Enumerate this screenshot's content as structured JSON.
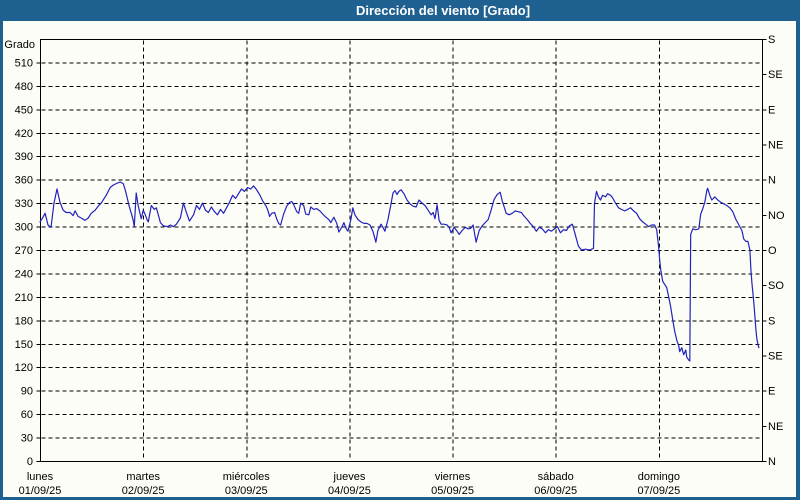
{
  "window": {
    "title": "Dirección del viento [Grado]"
  },
  "colors": {
    "titlebar_bg": "#1e6191",
    "frame_border": "#1e6191",
    "line": "#2222bd",
    "grid": "#000000",
    "background": "#fdfdf7"
  },
  "chart_data": {
    "type": "line",
    "title": "Dirección del viento [Grado]",
    "y_axis_label": "Grado",
    "ylim": [
      0,
      540
    ],
    "y_left_ticks": [
      0,
      30,
      60,
      90,
      120,
      150,
      180,
      210,
      240,
      270,
      300,
      330,
      360,
      390,
      420,
      450,
      480,
      510
    ],
    "y_right_ticks": [
      {
        "deg": 0,
        "label": "N"
      },
      {
        "deg": 45,
        "label": "NE"
      },
      {
        "deg": 90,
        "label": "E"
      },
      {
        "deg": 135,
        "label": "SE"
      },
      {
        "deg": 180,
        "label": "S"
      },
      {
        "deg": 225,
        "label": "SO"
      },
      {
        "deg": 270,
        "label": "O"
      },
      {
        "deg": 315,
        "label": "NO"
      },
      {
        "deg": 360,
        "label": "N"
      },
      {
        "deg": 405,
        "label": "NE"
      },
      {
        "deg": 450,
        "label": "E"
      },
      {
        "deg": 495,
        "label": "SE"
      },
      {
        "deg": 540,
        "label": "S"
      }
    ],
    "grid": "dashed",
    "x_days": [
      {
        "name": "lunes",
        "date": "01/09/25"
      },
      {
        "name": "martes",
        "date": "02/09/25"
      },
      {
        "name": "miércoles",
        "date": "03/09/25"
      },
      {
        "name": "jueves",
        "date": "04/09/25"
      },
      {
        "name": "viernes",
        "date": "05/09/25"
      },
      {
        "name": "sábado",
        "date": "06/09/25"
      },
      {
        "name": "domingo",
        "date": "07/09/25"
      }
    ],
    "series": [
      {
        "name": "Dirección del viento",
        "unit": "Grado",
        "color": "#2222bd",
        "points": [
          [
            0.0,
            306
          ],
          [
            0.029,
            312
          ],
          [
            0.049,
            317
          ],
          [
            0.078,
            302
          ],
          [
            0.107,
            299
          ],
          [
            0.136,
            330
          ],
          [
            0.165,
            348
          ],
          [
            0.194,
            331
          ],
          [
            0.224,
            321
          ],
          [
            0.253,
            318
          ],
          [
            0.292,
            318
          ],
          [
            0.321,
            314
          ],
          [
            0.34,
            320
          ],
          [
            0.369,
            313
          ],
          [
            0.399,
            311
          ],
          [
            0.437,
            308
          ],
          [
            0.467,
            311
          ],
          [
            0.496,
            317
          ],
          [
            0.535,
            321
          ],
          [
            0.564,
            326
          ],
          [
            0.593,
            330
          ],
          [
            0.642,
            340
          ],
          [
            0.681,
            350
          ],
          [
            0.71,
            353
          ],
          [
            0.739,
            355
          ],
          [
            0.778,
            357
          ],
          [
            0.807,
            355
          ],
          [
            0.826,
            347
          ],
          [
            0.846,
            336
          ],
          [
            0.865,
            326
          ],
          [
            0.885,
            317
          ],
          [
            0.904,
            308
          ],
          [
            0.914,
            300
          ],
          [
            0.933,
            343
          ],
          [
            0.953,
            326
          ],
          [
            0.972,
            315
          ],
          [
            0.982,
            310
          ],
          [
            1.001,
            321
          ],
          [
            1.021,
            315
          ],
          [
            1.04,
            308
          ],
          [
            1.05,
            306
          ],
          [
            1.079,
            327
          ],
          [
            1.108,
            322
          ],
          [
            1.128,
            324
          ],
          [
            1.147,
            315
          ],
          [
            1.167,
            305
          ],
          [
            1.196,
            301
          ],
          [
            1.235,
            300
          ],
          [
            1.264,
            302
          ],
          [
            1.293,
            300
          ],
          [
            1.322,
            303
          ],
          [
            1.361,
            311
          ],
          [
            1.39,
            330
          ],
          [
            1.419,
            318
          ],
          [
            1.449,
            307
          ],
          [
            1.488,
            315
          ],
          [
            1.517,
            327
          ],
          [
            1.546,
            322
          ],
          [
            1.575,
            330
          ],
          [
            1.604,
            321
          ],
          [
            1.633,
            318
          ],
          [
            1.662,
            325
          ],
          [
            1.692,
            319
          ],
          [
            1.721,
            315
          ],
          [
            1.75,
            322
          ],
          [
            1.779,
            317
          ],
          [
            1.808,
            324
          ],
          [
            1.837,
            331
          ],
          [
            1.867,
            340
          ],
          [
            1.896,
            336
          ],
          [
            1.925,
            342
          ],
          [
            1.954,
            348
          ],
          [
            1.983,
            345
          ],
          [
            2.013,
            350
          ],
          [
            2.042,
            348
          ],
          [
            2.071,
            352
          ],
          [
            2.1,
            347
          ],
          [
            2.129,
            341
          ],
          [
            2.158,
            333
          ],
          [
            2.188,
            327
          ],
          [
            2.207,
            322
          ],
          [
            2.226,
            313
          ],
          [
            2.246,
            317
          ],
          [
            2.275,
            318
          ],
          [
            2.294,
            310
          ],
          [
            2.314,
            304
          ],
          [
            2.333,
            302
          ],
          [
            2.362,
            316
          ],
          [
            2.392,
            326
          ],
          [
            2.421,
            331
          ],
          [
            2.44,
            332
          ],
          [
            2.46,
            328
          ],
          [
            2.489,
            319
          ],
          [
            2.508,
            317
          ],
          [
            2.528,
            330
          ],
          [
            2.557,
            327
          ],
          [
            2.576,
            316
          ],
          [
            2.606,
            315
          ],
          [
            2.625,
            325
          ],
          [
            2.654,
            322
          ],
          [
            2.683,
            323
          ],
          [
            2.713,
            320
          ],
          [
            2.742,
            316
          ],
          [
            2.771,
            312
          ],
          [
            2.8,
            309
          ],
          [
            2.819,
            305
          ],
          [
            2.849,
            312
          ],
          [
            2.878,
            304
          ],
          [
            2.897,
            293
          ],
          [
            2.926,
            299
          ],
          [
            2.946,
            305
          ],
          [
            2.965,
            298
          ],
          [
            2.985,
            294
          ],
          [
            3.014,
            309
          ],
          [
            3.033,
            324
          ],
          [
            3.053,
            315
          ],
          [
            3.082,
            309
          ],
          [
            3.111,
            306
          ],
          [
            3.14,
            304
          ],
          [
            3.169,
            304
          ],
          [
            3.199,
            302
          ],
          [
            3.228,
            294
          ],
          [
            3.257,
            280
          ],
          [
            3.276,
            295
          ],
          [
            3.306,
            303
          ],
          [
            3.325,
            299
          ],
          [
            3.344,
            294
          ],
          [
            3.374,
            309
          ],
          [
            3.403,
            329
          ],
          [
            3.422,
            343
          ],
          [
            3.442,
            346
          ],
          [
            3.461,
            341
          ],
          [
            3.48,
            345
          ],
          [
            3.5,
            347
          ],
          [
            3.529,
            342
          ],
          [
            3.558,
            334
          ],
          [
            3.587,
            329
          ],
          [
            3.617,
            326
          ],
          [
            3.646,
            325
          ],
          [
            3.675,
            334
          ],
          [
            3.704,
            330
          ],
          [
            3.733,
            327
          ],
          [
            3.762,
            321
          ],
          [
            3.792,
            315
          ],
          [
            3.811,
            318
          ],
          [
            3.83,
            310
          ],
          [
            3.85,
            328
          ],
          [
            3.869,
            308
          ],
          [
            3.889,
            303
          ],
          [
            3.918,
            303
          ],
          [
            3.947,
            302
          ],
          [
            3.966,
            299
          ],
          [
            3.986,
            292
          ],
          [
            4.015,
            299
          ],
          [
            4.044,
            294
          ],
          [
            4.063,
            290
          ],
          [
            4.093,
            295
          ],
          [
            4.122,
            299
          ],
          [
            4.151,
            297
          ],
          [
            4.18,
            298
          ],
          [
            4.199,
            302
          ],
          [
            4.228,
            280
          ],
          [
            4.258,
            295
          ],
          [
            4.287,
            301
          ],
          [
            4.316,
            305
          ],
          [
            4.345,
            309
          ],
          [
            4.375,
            322
          ],
          [
            4.404,
            335
          ],
          [
            4.433,
            341
          ],
          [
            4.462,
            344
          ],
          [
            4.481,
            333
          ],
          [
            4.501,
            325
          ],
          [
            4.52,
            317
          ],
          [
            4.549,
            315
          ],
          [
            4.578,
            317
          ],
          [
            4.608,
            320
          ],
          [
            4.637,
            319
          ],
          [
            4.666,
            318
          ],
          [
            4.695,
            313
          ],
          [
            4.724,
            309
          ],
          [
            4.753,
            304
          ],
          [
            4.783,
            300
          ],
          [
            4.812,
            294
          ],
          [
            4.841,
            299
          ],
          [
            4.87,
            297
          ],
          [
            4.9,
            292
          ],
          [
            4.929,
            296
          ],
          [
            4.958,
            294
          ],
          [
            4.987,
            297
          ],
          [
            5.016,
            300
          ],
          [
            5.045,
            292
          ],
          [
            5.075,
            296
          ],
          [
            5.104,
            295
          ],
          [
            5.133,
            301
          ],
          [
            5.162,
            303
          ],
          [
            5.191,
            289
          ],
          [
            5.22,
            275
          ],
          [
            5.25,
            270
          ],
          [
            5.289,
            271
          ],
          [
            5.327,
            270
          ],
          [
            5.366,
            272
          ],
          [
            5.376,
            330
          ],
          [
            5.395,
            345
          ],
          [
            5.415,
            338
          ],
          [
            5.434,
            334
          ],
          [
            5.454,
            340
          ],
          [
            5.483,
            338
          ],
          [
            5.502,
            342
          ],
          [
            5.531,
            340
          ],
          [
            5.551,
            337
          ],
          [
            5.58,
            330
          ],
          [
            5.609,
            324
          ],
          [
            5.638,
            322
          ],
          [
            5.667,
            320
          ],
          [
            5.697,
            322
          ],
          [
            5.726,
            324
          ],
          [
            5.755,
            320
          ],
          [
            5.784,
            317
          ],
          [
            5.813,
            310
          ],
          [
            5.843,
            306
          ],
          [
            5.872,
            303
          ],
          [
            5.901,
            300
          ],
          [
            5.93,
            302
          ],
          [
            5.959,
            302
          ],
          [
            5.979,
            296
          ],
          [
            5.998,
            273
          ],
          [
            6.008,
            257
          ],
          [
            6.018,
            245
          ],
          [
            6.037,
            230
          ],
          [
            6.057,
            226
          ],
          [
            6.076,
            222
          ],
          [
            6.095,
            210
          ],
          [
            6.115,
            197
          ],
          [
            6.134,
            181
          ],
          [
            6.154,
            166
          ],
          [
            6.173,
            155
          ],
          [
            6.193,
            147
          ],
          [
            6.202,
            140
          ],
          [
            6.222,
            145
          ],
          [
            6.241,
            136
          ],
          [
            6.261,
            142
          ],
          [
            6.27,
            133
          ],
          [
            6.29,
            129
          ],
          [
            6.3,
            128
          ],
          [
            6.309,
            290
          ],
          [
            6.329,
            297
          ],
          [
            6.358,
            296
          ],
          [
            6.387,
            297
          ],
          [
            6.406,
            316
          ],
          [
            6.426,
            323
          ],
          [
            6.445,
            331
          ],
          [
            6.465,
            346
          ],
          [
            6.474,
            349
          ],
          [
            6.494,
            340
          ],
          [
            6.513,
            334
          ],
          [
            6.542,
            338
          ],
          [
            6.571,
            334
          ],
          [
            6.601,
            331
          ],
          [
            6.63,
            329
          ],
          [
            6.659,
            327
          ],
          [
            6.688,
            324
          ],
          [
            6.717,
            319
          ],
          [
            6.747,
            309
          ],
          [
            6.776,
            302
          ],
          [
            6.805,
            295
          ],
          [
            6.824,
            284
          ],
          [
            6.844,
            281
          ],
          [
            6.863,
            281
          ],
          [
            6.883,
            270
          ],
          [
            6.892,
            245
          ],
          [
            6.902,
            228
          ],
          [
            6.912,
            215
          ],
          [
            6.922,
            200
          ],
          [
            6.931,
            185
          ],
          [
            6.941,
            168
          ],
          [
            6.951,
            156
          ],
          [
            6.961,
            149
          ],
          [
            6.97,
            145
          ]
        ]
      }
    ]
  }
}
